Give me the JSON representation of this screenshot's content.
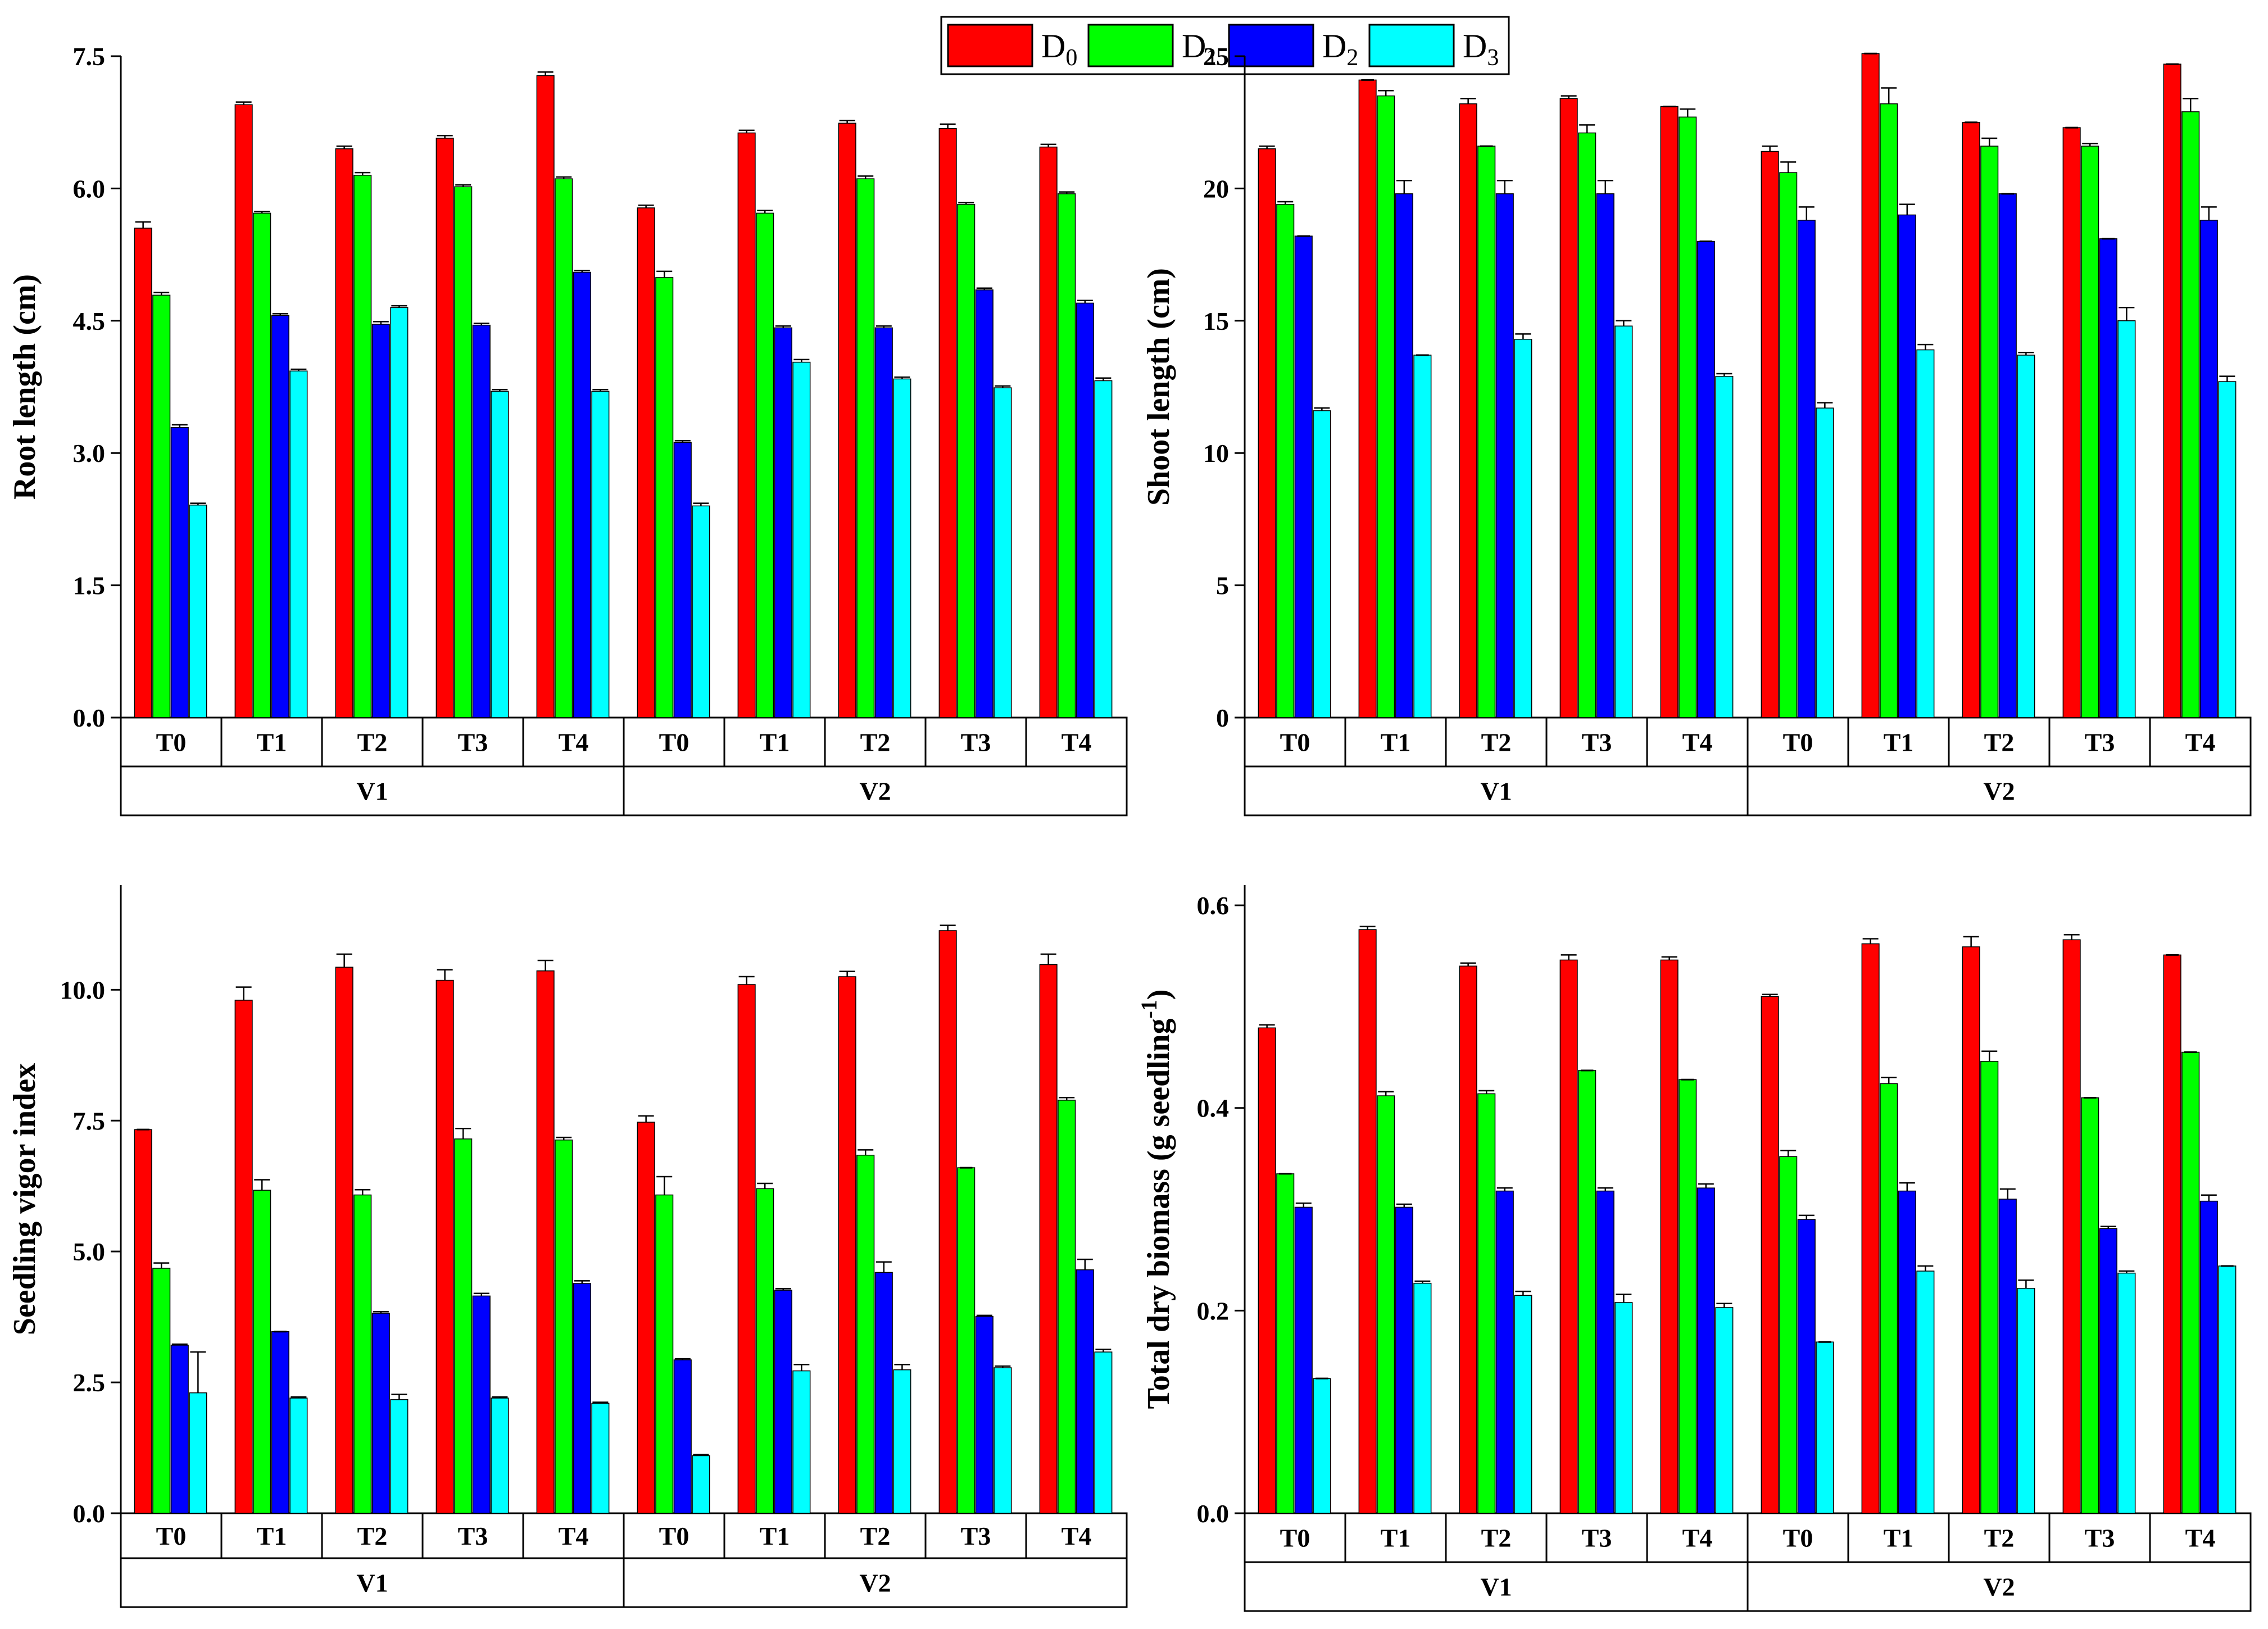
{
  "legend": {
    "entries": [
      {
        "base": "D",
        "sub": "0",
        "color": "#ff0000"
      },
      {
        "base": "D",
        "sub": "1",
        "color": "#00ff00"
      },
      {
        "base": "D",
        "sub": "2",
        "color": "#0000ff"
      },
      {
        "base": "D",
        "sub": "3",
        "color": "#00ffff"
      }
    ]
  },
  "chart_data": [
    {
      "type": "bar",
      "id": "root",
      "ylabel": "Root length (cm)",
      "ylim": [
        0,
        7.5
      ],
      "yticks": [
        "0.0",
        "1.5",
        "3.0",
        "4.5",
        "6.0",
        "7.5"
      ],
      "categories": [
        "T0",
        "T1",
        "T2",
        "T3",
        "T4",
        "T0",
        "T1",
        "T2",
        "T3",
        "T4"
      ],
      "groups": [
        "V1",
        "V2"
      ],
      "series": [
        {
          "name": "D0",
          "color": "#ff0000",
          "values": [
            5.55,
            6.95,
            6.45,
            6.57,
            7.28,
            5.78,
            6.63,
            6.74,
            6.68,
            6.47
          ],
          "errors": [
            0.07,
            0.03,
            0.03,
            0.03,
            0.04,
            0.03,
            0.03,
            0.03,
            0.05,
            0.03
          ]
        },
        {
          "name": "D1",
          "color": "#00ff00",
          "values": [
            4.79,
            5.72,
            6.15,
            6.02,
            6.11,
            4.99,
            5.72,
            6.11,
            5.82,
            5.94
          ],
          "errors": [
            0.03,
            0.02,
            0.03,
            0.02,
            0.02,
            0.07,
            0.03,
            0.03,
            0.02,
            0.02
          ]
        },
        {
          "name": "D2",
          "color": "#0000ff",
          "values": [
            3.29,
            4.56,
            4.46,
            4.45,
            5.05,
            3.12,
            4.42,
            4.42,
            4.85,
            4.7
          ],
          "errors": [
            0.03,
            0.02,
            0.03,
            0.02,
            0.02,
            0.02,
            0.02,
            0.02,
            0.02,
            0.03
          ]
        },
        {
          "name": "D3",
          "color": "#00ffff",
          "values": [
            2.41,
            3.93,
            4.65,
            3.7,
            3.7,
            2.4,
            4.03,
            3.84,
            3.74,
            3.82
          ],
          "errors": [
            0.02,
            0.02,
            0.02,
            0.02,
            0.02,
            0.03,
            0.03,
            0.02,
            0.02,
            0.03
          ]
        }
      ]
    },
    {
      "type": "bar",
      "id": "shoot",
      "ylabel": "Shoot length (cm)",
      "ylim": [
        0,
        25
      ],
      "yticks": [
        "0",
        "5",
        "10",
        "15",
        "20",
        "25"
      ],
      "categories": [
        "T0",
        "T1",
        "T2",
        "T3",
        "T4",
        "T0",
        "T1",
        "T2",
        "T3",
        "T4"
      ],
      "groups": [
        "V1",
        "V2"
      ],
      "series": [
        {
          "name": "D0",
          "color": "#ff0000",
          "values": [
            21.5,
            24.1,
            23.2,
            23.4,
            23.1,
            21.4,
            25.1,
            22.5,
            22.3,
            24.7
          ],
          "errors": [
            0.1,
            0.0,
            0.2,
            0.1,
            0.0,
            0.2,
            0.0,
            0.0,
            0.0,
            0.0
          ]
        },
        {
          "name": "D1",
          "color": "#00ff00",
          "values": [
            19.4,
            23.5,
            21.6,
            22.1,
            22.7,
            20.6,
            23.2,
            21.6,
            21.6,
            22.9
          ],
          "errors": [
            0.1,
            0.2,
            0.0,
            0.3,
            0.3,
            0.4,
            0.6,
            0.3,
            0.1,
            0.5
          ]
        },
        {
          "name": "D2",
          "color": "#0000ff",
          "values": [
            18.2,
            19.8,
            19.8,
            19.8,
            18.0,
            18.8,
            19.0,
            19.8,
            18.1,
            18.8
          ],
          "errors": [
            0.0,
            0.5,
            0.5,
            0.5,
            0.0,
            0.5,
            0.4,
            0.0,
            0.0,
            0.5
          ]
        },
        {
          "name": "D3",
          "color": "#00ffff",
          "values": [
            11.6,
            13.7,
            14.3,
            14.8,
            12.9,
            11.7,
            13.9,
            13.7,
            15.0,
            12.7
          ],
          "errors": [
            0.1,
            0.0,
            0.2,
            0.2,
            0.1,
            0.2,
            0.2,
            0.1,
            0.5,
            0.2
          ]
        }
      ]
    },
    {
      "type": "bar",
      "id": "vigor",
      "ylabel": "Seedling vigor index",
      "ylim": [
        0,
        12
      ],
      "yticks": [
        "0.0",
        "2.5",
        "5.0",
        "7.5",
        "10.0"
      ],
      "ytickvalues": [
        0,
        2.5,
        5.0,
        7.5,
        10.0
      ],
      "categories": [
        "T0",
        "T1",
        "T2",
        "T3",
        "T4",
        "T0",
        "T1",
        "T2",
        "T3",
        "T4"
      ],
      "groups": [
        "V1",
        "V2"
      ],
      "series": [
        {
          "name": "D0",
          "color": "#ff0000",
          "values": [
            7.33,
            9.8,
            10.43,
            10.18,
            10.36,
            7.47,
            10.1,
            10.25,
            11.13,
            10.48
          ],
          "errors": [
            0.0,
            0.25,
            0.25,
            0.2,
            0.2,
            0.12,
            0.15,
            0.1,
            0.1,
            0.2
          ]
        },
        {
          "name": "D1",
          "color": "#00ff00",
          "values": [
            4.68,
            6.17,
            6.08,
            7.15,
            7.13,
            6.08,
            6.2,
            6.84,
            6.6,
            7.89
          ],
          "errors": [
            0.1,
            0.2,
            0.1,
            0.2,
            0.05,
            0.35,
            0.1,
            0.1,
            0.0,
            0.05
          ]
        },
        {
          "name": "D2",
          "color": "#0000ff",
          "values": [
            3.21,
            3.47,
            3.82,
            4.15,
            4.39,
            2.93,
            4.26,
            4.6,
            3.76,
            4.65
          ],
          "errors": [
            0.02,
            0.0,
            0.03,
            0.05,
            0.05,
            0.02,
            0.03,
            0.2,
            0.02,
            0.2
          ]
        },
        {
          "name": "D3",
          "color": "#00ffff",
          "values": [
            2.3,
            2.2,
            2.17,
            2.2,
            2.1,
            1.1,
            2.72,
            2.74,
            2.78,
            3.08
          ],
          "errors": [
            0.78,
            0.02,
            0.1,
            0.02,
            0.02,
            0.02,
            0.12,
            0.1,
            0.03,
            0.05
          ]
        }
      ]
    },
    {
      "type": "bar",
      "id": "biomass",
      "ylabel": "Total dry biomass (g seedling",
      "ylabel_sup": "-1",
      "ylabel_close": ")",
      "ylim": [
        0,
        0.62
      ],
      "yticks": [
        "0.0",
        "0.2",
        "0.4",
        "0.6"
      ],
      "ytickvalues": [
        0,
        0.2,
        0.4,
        0.6
      ],
      "categories": [
        "T0",
        "T1",
        "T2",
        "T3",
        "T4",
        "T0",
        "T1",
        "T2",
        "T3",
        "T4"
      ],
      "groups": [
        "V1",
        "V2"
      ],
      "series": [
        {
          "name": "D0",
          "color": "#ff0000",
          "values": [
            0.479,
            0.576,
            0.54,
            0.546,
            0.546,
            0.51,
            0.562,
            0.559,
            0.566,
            0.551
          ],
          "errors": [
            0.003,
            0.003,
            0.003,
            0.005,
            0.003,
            0.002,
            0.005,
            0.01,
            0.005,
            0.0
          ]
        },
        {
          "name": "D1",
          "color": "#00ff00",
          "values": [
            0.335,
            0.412,
            0.414,
            0.437,
            0.428,
            0.352,
            0.424,
            0.446,
            0.41,
            0.455
          ],
          "errors": [
            0.0,
            0.004,
            0.003,
            0.0,
            0.0,
            0.006,
            0.006,
            0.01,
            0.0,
            0.0
          ]
        },
        {
          "name": "D2",
          "color": "#0000ff",
          "values": [
            0.302,
            0.302,
            0.318,
            0.318,
            0.321,
            0.29,
            0.318,
            0.31,
            0.281,
            0.308
          ],
          "errors": [
            0.004,
            0.003,
            0.003,
            0.003,
            0.004,
            0.004,
            0.008,
            0.01,
            0.002,
            0.006
          ]
        },
        {
          "name": "D3",
          "color": "#00ffff",
          "values": [
            0.133,
            0.227,
            0.215,
            0.208,
            0.203,
            0.169,
            0.239,
            0.222,
            0.237,
            0.244
          ],
          "errors": [
            0.0,
            0.002,
            0.004,
            0.008,
            0.004,
            0.0,
            0.005,
            0.008,
            0.002,
            0.0
          ]
        }
      ]
    }
  ]
}
